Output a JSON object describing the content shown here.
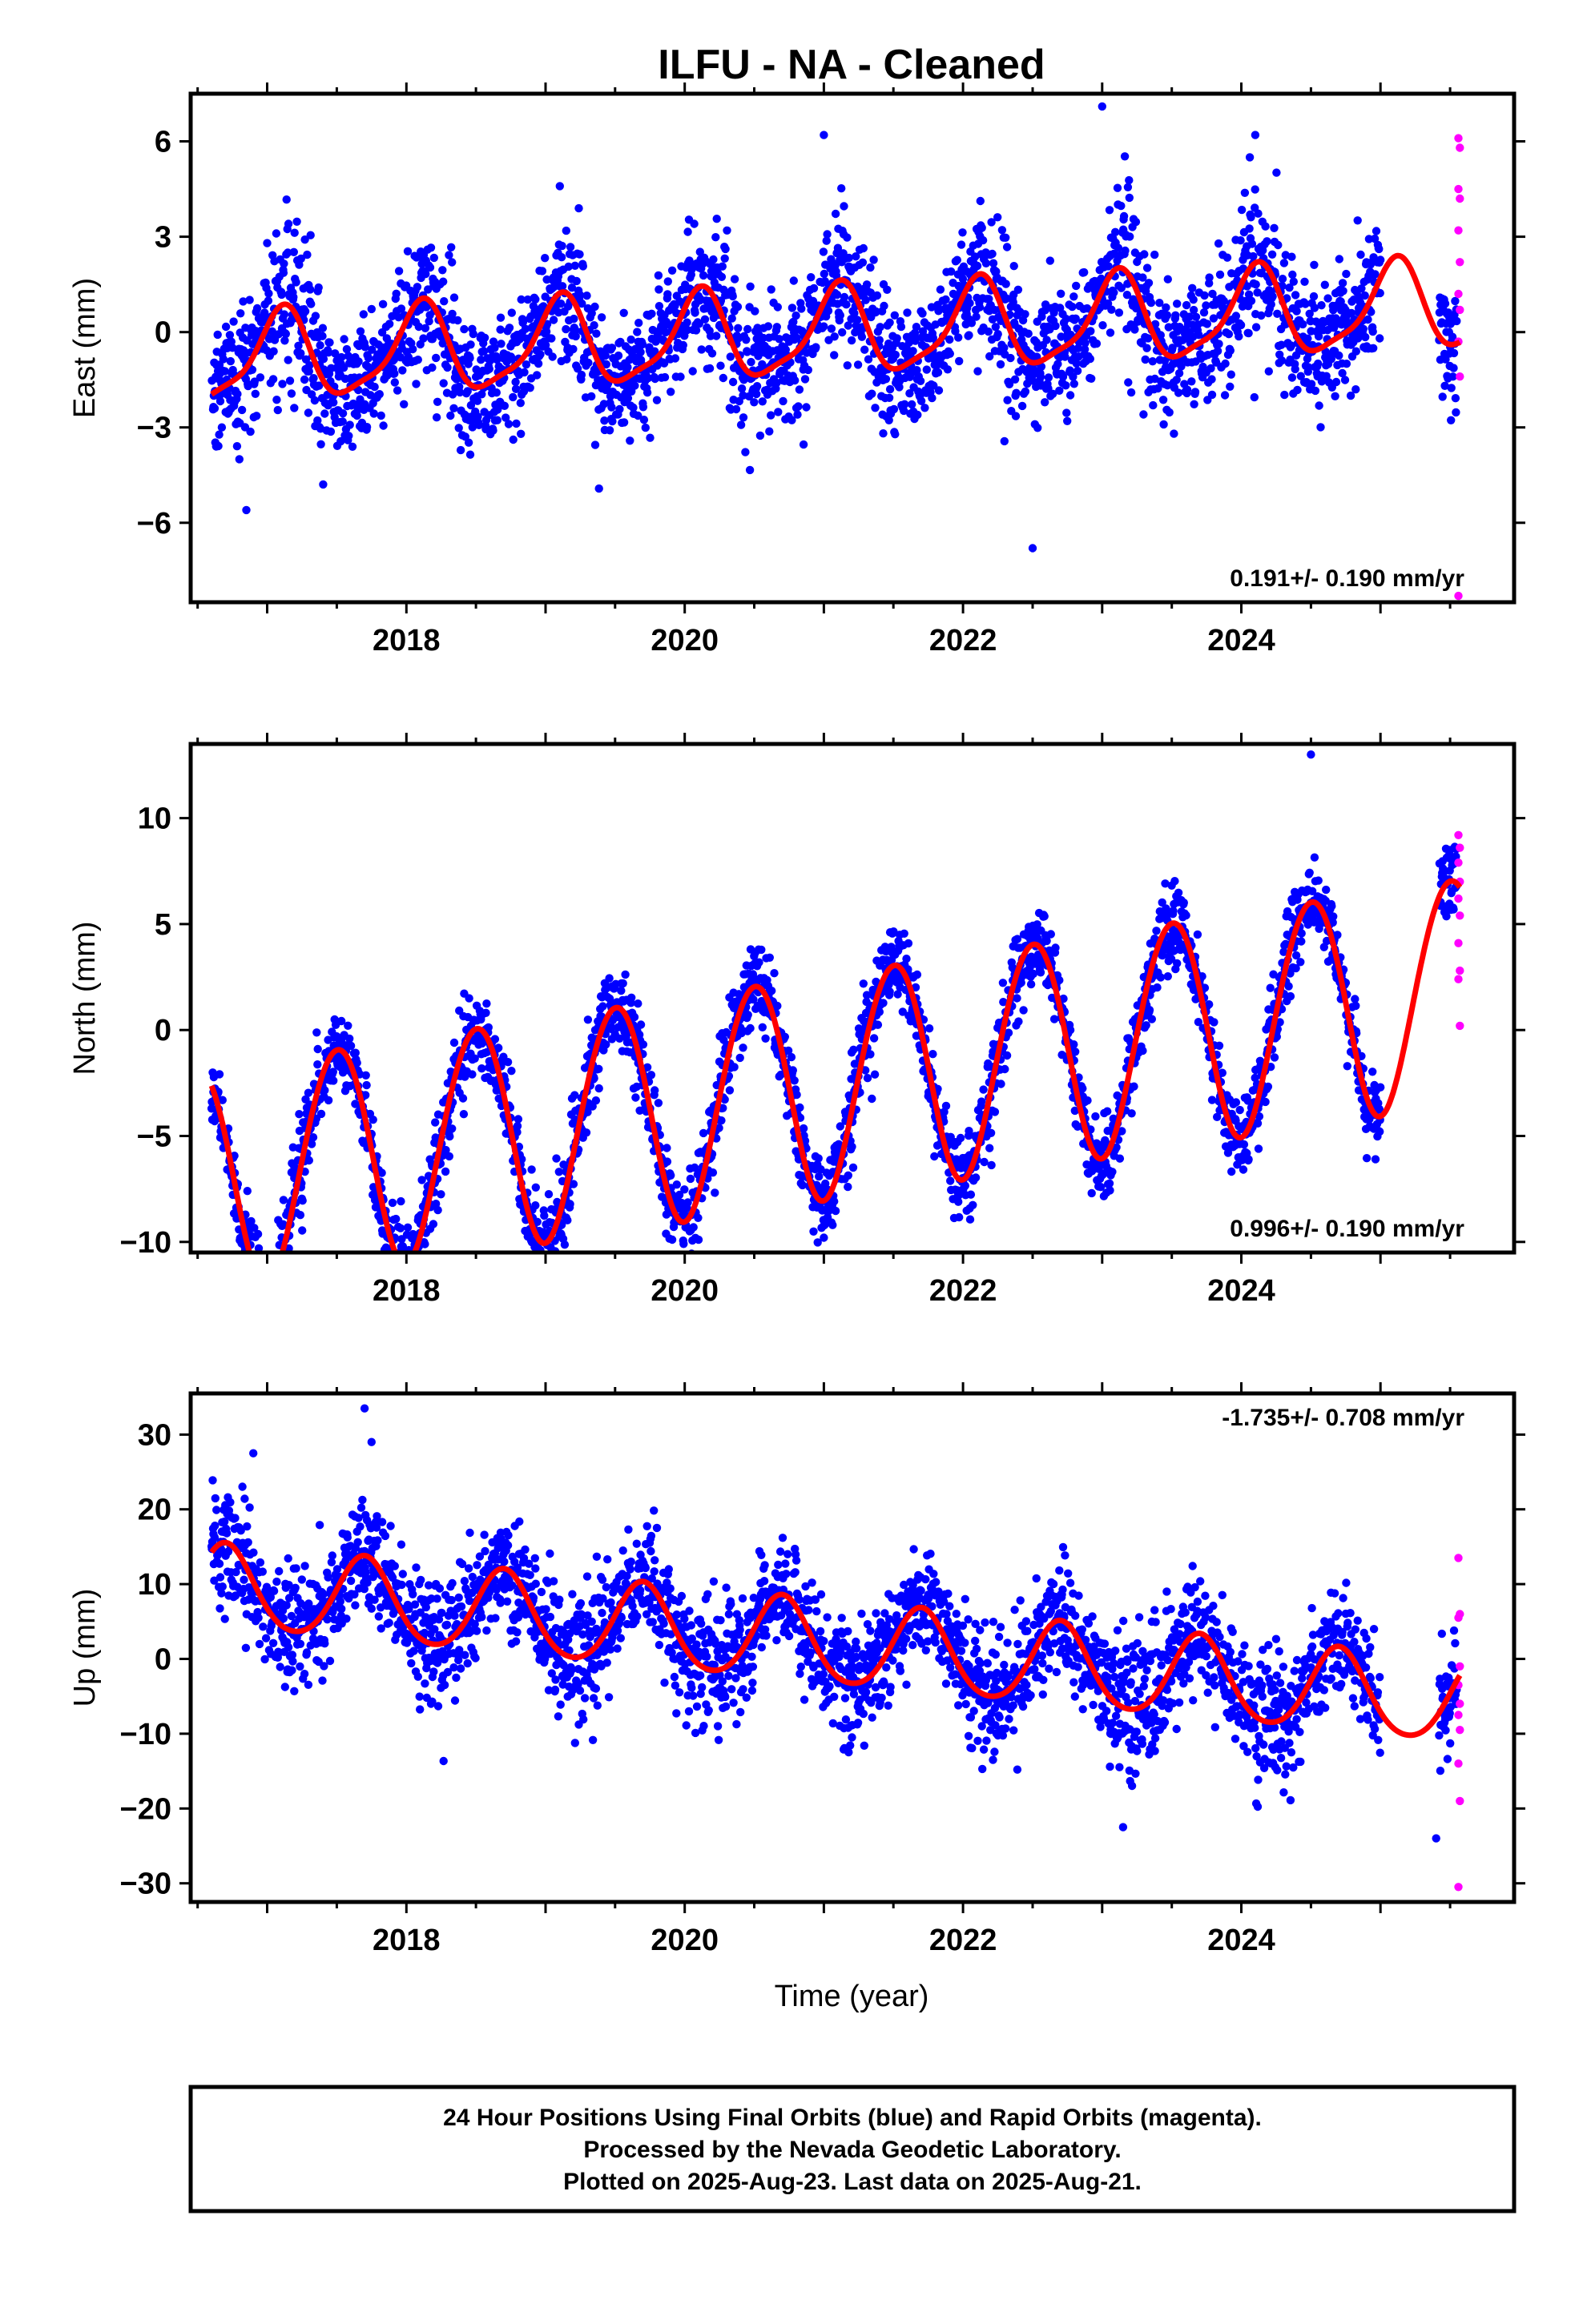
{
  "title": "ILFU  - NA - Cleaned",
  "xlabel": "Time (year)",
  "footer": {
    "line1": "24 Hour Positions Using Final Orbits (blue) and Rapid Orbits (magenta).",
    "line2": "Processed by the Nevada Geodetic Laboratory.",
    "line3": "Plotted on 2025-Aug-23. Last data on 2025-Aug-21."
  },
  "colors": {
    "final_orbits": "#0000ff",
    "rapid_orbits": "#ff00ff",
    "model_fit": "#ff0000",
    "frame": "#000000"
  },
  "chart_data": [
    {
      "type": "scatter",
      "component": "east",
      "ylabel": "East (mm)",
      "rate_label": "0.191+/- 0.190 mm/yr",
      "rate_position": "bottom-right",
      "xlim": [
        2016.45,
        2025.96
      ],
      "ylim": [
        -8.5,
        7.5
      ],
      "xticks": [
        2018,
        2020,
        2022,
        2024
      ],
      "xtick_labels": [
        "2018",
        "2020",
        "2022",
        "2024"
      ],
      "yticks": [
        6,
        3,
        0,
        -3,
        -6
      ],
      "ytick_labels": [
        "6",
        "3",
        "0",
        "−3",
        "−6"
      ],
      "grid": false,
      "x_range": [
        2016.6,
        2025.55
      ],
      "model": {
        "offset": -0.05,
        "slope": 0.191,
        "annual_amp": 1.35,
        "annual_peak": 0.1,
        "semiannual_amp": 0.35,
        "semiannual_peak": 0.15,
        "gap_years": 0.55
      },
      "scatter_sd": 0.95,
      "outliers": [
        [
          2021.0,
          6.2
        ],
        [
          2023.0,
          7.1
        ],
        [
          2022.5,
          -6.8
        ],
        [
          2016.85,
          -5.6
        ],
        [
          2024.1,
          6.2
        ]
      ],
      "rapid_points": [
        6.1,
        5.8,
        4.5,
        4.2,
        3.2,
        2.2,
        1.2,
        0.7,
        -0.3,
        -1.4,
        -8.3
      ]
    },
    {
      "type": "scatter",
      "component": "north",
      "ylabel": "North (mm)",
      "rate_label": "0.996+/- 0.190 mm/yr",
      "rate_position": "bottom-right",
      "xlim": [
        2016.45,
        2025.96
      ],
      "ylim": [
        -10.5,
        13.5
      ],
      "xticks": [
        2018,
        2020,
        2022,
        2024
      ],
      "xtick_labels": [
        "2018",
        "2020",
        "2022",
        "2024"
      ],
      "yticks": [
        10,
        5,
        0,
        -5,
        -10
      ],
      "ytick_labels": [
        "10",
        "5",
        "0",
        "−5",
        "−10"
      ],
      "grid": false,
      "x_range": [
        2016.6,
        2025.55
      ],
      "model": {
        "offset": -2.6,
        "slope": 0.996,
        "annual_amp": 5.3,
        "annual_peak": 0.5,
        "semiannual_amp": 0.2,
        "semiannual_peak": 0.2,
        "gap_years": 0.55
      },
      "scatter_sd": 0.9,
      "outliers": [
        [
          2024.5,
          13.0
        ],
        [
          2020.1,
          -9.9
        ],
        [
          2021.0,
          -9.8
        ]
      ],
      "rapid_points": [
        9.2,
        8.6,
        7.9,
        7.0,
        6.2,
        5.4,
        4.1,
        2.8,
        2.4,
        0.2
      ]
    },
    {
      "type": "scatter",
      "component": "up",
      "ylabel": "Up (mm)",
      "rate_label": "-1.735+/- 0.708 mm/yr",
      "rate_position": "top-right",
      "xlim": [
        2016.45,
        2025.96
      ],
      "ylim": [
        -32.5,
        35.5
      ],
      "xticks": [
        2018,
        2020,
        2022,
        2024
      ],
      "xtick_labels": [
        "2018",
        "2020",
        "2022",
        "2024"
      ],
      "yticks": [
        30,
        20,
        10,
        0,
        -10,
        -20,
        -30
      ],
      "ytick_labels": [
        "30",
        "20",
        "10",
        "0",
        "−10",
        "−20",
        "−30"
      ],
      "grid": false,
      "x_range": [
        2016.6,
        2025.55
      ],
      "model": {
        "offset": 2.0,
        "slope": -1.735,
        "annual_amp": 5.5,
        "annual_peak": 0.7,
        "semiannual_amp": 0.6,
        "semiannual_peak": 0.2,
        "gap_years": 0.55
      },
      "scatter_sd": 3.6,
      "outliers": [
        [
          2017.7,
          33.5
        ],
        [
          2017.75,
          29.0
        ],
        [
          2016.9,
          27.5
        ],
        [
          2023.15,
          -22.5
        ],
        [
          2025.4,
          -24.0
        ]
      ],
      "rapid_points": [
        13.5,
        6.0,
        5.5,
        -1.0,
        -3.5,
        -6.0,
        -7.5,
        -9.5,
        -14.0,
        -19.0,
        -30.5
      ]
    }
  ]
}
